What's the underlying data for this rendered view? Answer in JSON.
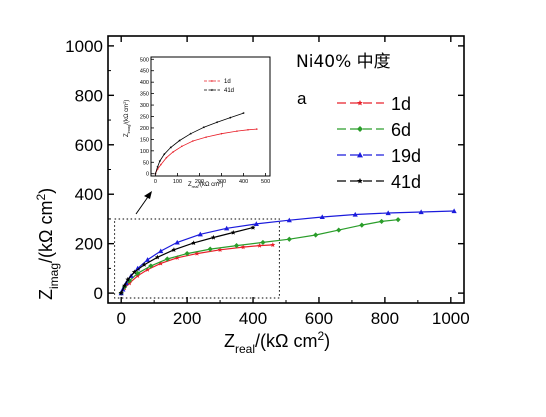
{
  "chart_data": [
    {
      "type": "line",
      "title": "",
      "xlabel": "Z",
      "xlabel_sub": "real",
      "xlabel_unit": "/(kΩ cm",
      "xlabel_sup": "2",
      "xlabel_close": ")",
      "ylabel": "Z",
      "ylabel_sub": "imag",
      "ylabel_unit": "/(kΩ cm",
      "ylabel_sup": "2",
      "ylabel_close": ")",
      "xlim": [
        -40,
        1040
      ],
      "ylim": [
        -40,
        1040
      ],
      "xticks": [
        0,
        200,
        400,
        600,
        800,
        1000
      ],
      "yticks": [
        0,
        200,
        400,
        600,
        800,
        1000
      ],
      "annotations": [
        "Ni40% 中度",
        "a"
      ],
      "legend_position": "right",
      "series": [
        {
          "name": "1d",
          "color": "#e8202a",
          "marker": "star",
          "x": [
            0,
            10,
            25,
            50,
            80,
            120,
            170,
            230,
            300,
            370,
            420,
            460
          ],
          "y": [
            0,
            20,
            40,
            70,
            95,
            120,
            143,
            160,
            175,
            186,
            192,
            195
          ]
        },
        {
          "name": "6d",
          "color": "#2a9d2a",
          "marker": "diamond",
          "x": [
            0,
            10,
            25,
            50,
            90,
            140,
            200,
            270,
            350,
            430,
            510,
            590,
            660,
            730,
            790,
            840
          ],
          "y": [
            0,
            25,
            50,
            80,
            110,
            138,
            160,
            178,
            192,
            205,
            218,
            235,
            255,
            275,
            290,
            297
          ]
        },
        {
          "name": "19d",
          "color": "#1b1bdc",
          "marker": "triangle",
          "x": [
            0,
            5,
            15,
            30,
            50,
            80,
            120,
            170,
            240,
            320,
            410,
            510,
            610,
            710,
            810,
            910,
            1010
          ],
          "y": [
            0,
            15,
            40,
            70,
            100,
            135,
            170,
            205,
            238,
            262,
            280,
            295,
            308,
            318,
            324,
            328,
            332
          ]
        },
        {
          "name": "41d",
          "color": "#000000",
          "marker": "star",
          "x": [
            0,
            10,
            20,
            40,
            70,
            110,
            160,
            220,
            280,
            340,
            400
          ],
          "y": [
            0,
            30,
            55,
            85,
            115,
            145,
            175,
            203,
            225,
            245,
            265
          ]
        }
      ]
    },
    {
      "type": "line",
      "title": "",
      "xlabel": "Z",
      "xlabel_sub": "real",
      "xlabel_unit": "/(kΩ cm",
      "xlabel_sup": "2",
      "xlabel_close": ")",
      "ylabel": "Z",
      "ylabel_sub": "imag",
      "ylabel_unit": "/(kΩ cm",
      "ylabel_sup": "2",
      "ylabel_close": ")",
      "xlim": [
        -20,
        520
      ],
      "ylim": [
        -10,
        510
      ],
      "xticks": [
        0,
        100,
        200,
        300,
        400,
        500
      ],
      "yticks": [
        0,
        50,
        100,
        150,
        200,
        250,
        300,
        350,
        400,
        450,
        500
      ],
      "legend_position": "top-left",
      "series": [
        {
          "name": "1d",
          "color": "#e8202a",
          "marker": "dot",
          "x": [
            0,
            10,
            25,
            50,
            80,
            120,
            170,
            230,
            300,
            370,
            420,
            460
          ],
          "y": [
            0,
            20,
            40,
            70,
            95,
            120,
            143,
            160,
            175,
            186,
            192,
            195
          ]
        },
        {
          "name": "41d",
          "color": "#000000",
          "marker": "star",
          "x": [
            0,
            10,
            20,
            40,
            70,
            110,
            160,
            220,
            280,
            340,
            400
          ],
          "y": [
            0,
            30,
            55,
            85,
            115,
            145,
            175,
            203,
            225,
            245,
            265
          ]
        }
      ]
    }
  ]
}
